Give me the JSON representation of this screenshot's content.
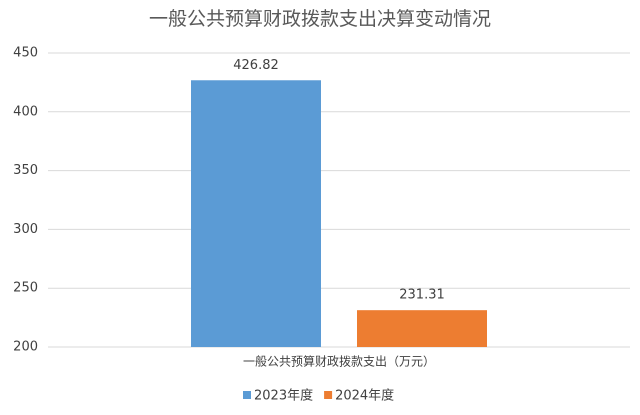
{
  "chart_data": {
    "type": "bar",
    "title": "一般公共预算财政拨款支出决算变动情况",
    "categories": [
      "一般公共预算财政拨款支出（万元）"
    ],
    "series": [
      {
        "name": "2023年度",
        "color": "#5b9bd5",
        "values": [
          426.82
        ]
      },
      {
        "name": "2024年度",
        "color": "#ed7d31",
        "values": [
          231.31
        ]
      }
    ],
    "ylim": [
      200,
      450
    ],
    "yticks": [
      200,
      250,
      300,
      350,
      400,
      450
    ],
    "grid": true
  }
}
